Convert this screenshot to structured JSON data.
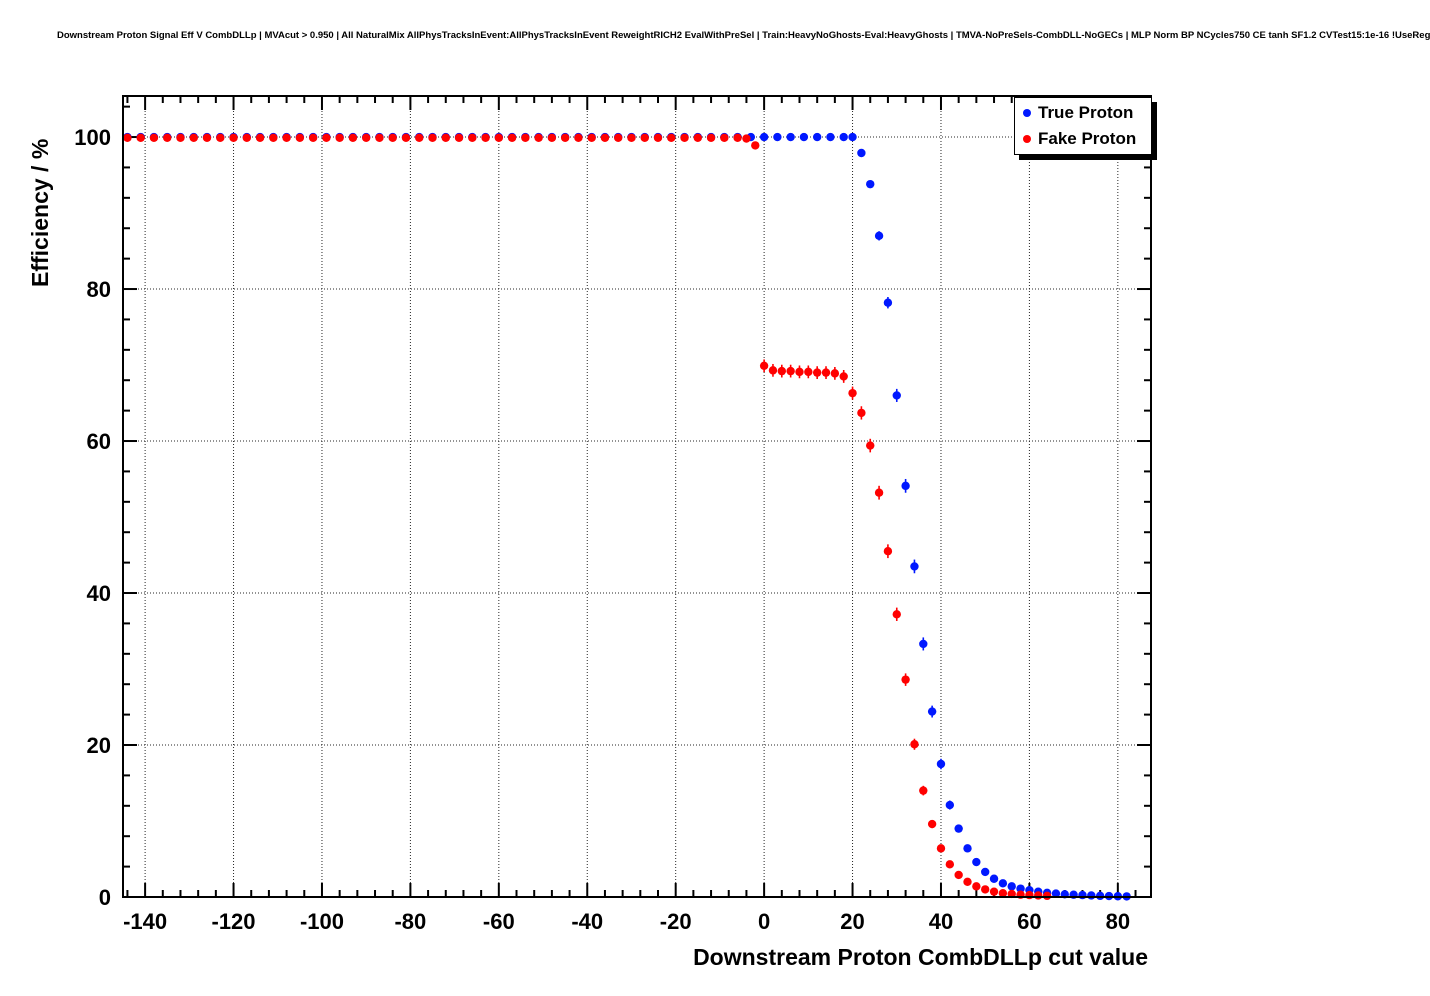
{
  "title": "Downstream Proton Signal Eff V CombDLLp | MVAcut > 0.950 | All NaturalMix AllPhysTracksInEvent:AllPhysTracksInEvent ReweightRICH2 EvalWithPreSel | Train:HeavyNoGhosts-Eval:HeavyGhosts | TMVA-NoPreSels-CombDLL-NoGECs | MLP Norm BP NCycles750 CE tanh SF1.2 CVTest15:1e-16 !UseReg",
  "chart_data": {
    "type": "scatter",
    "title": "Downstream Proton Signal Eff V CombDLLp",
    "xlabel": "Downstream Proton CombDLLp cut value",
    "ylabel": "Efficiency / %",
    "xlim": [
      -145,
      87.5
    ],
    "ylim": [
      0,
      105.4
    ],
    "xticks": [
      -140,
      -120,
      -100,
      -80,
      -60,
      -40,
      -20,
      0,
      20,
      40,
      60,
      80
    ],
    "yticks": [
      0,
      20,
      40,
      60,
      80,
      100
    ],
    "minor_x_step": 4,
    "minor_y_step": 4,
    "grid": true,
    "grid_style": "dotted",
    "legend": {
      "position": "top-right",
      "entries": [
        {
          "label": "True Proton",
          "color": "#0018ff"
        },
        {
          "label": "Fake Proton",
          "color": "#ff0000"
        }
      ]
    },
    "series": [
      {
        "name": "True Proton",
        "color": "#0018ff",
        "points": [
          [
            -144,
            100
          ],
          [
            -141,
            100
          ],
          [
            -138,
            100
          ],
          [
            -135,
            100
          ],
          [
            -132,
            100
          ],
          [
            -129,
            100
          ],
          [
            -126,
            100
          ],
          [
            -123,
            100
          ],
          [
            -120,
            100
          ],
          [
            -117,
            100
          ],
          [
            -114,
            100
          ],
          [
            -111,
            100
          ],
          [
            -108,
            100
          ],
          [
            -105,
            100
          ],
          [
            -102,
            100
          ],
          [
            -99,
            100
          ],
          [
            -96,
            100
          ],
          [
            -93,
            100
          ],
          [
            -90,
            100
          ],
          [
            -87,
            100
          ],
          [
            -84,
            100
          ],
          [
            -81,
            100
          ],
          [
            -78,
            100
          ],
          [
            -75,
            100
          ],
          [
            -72,
            100
          ],
          [
            -69,
            100
          ],
          [
            -66,
            100
          ],
          [
            -63,
            100
          ],
          [
            -60,
            100
          ],
          [
            -57,
            100
          ],
          [
            -54,
            100
          ],
          [
            -51,
            100
          ],
          [
            -48,
            100
          ],
          [
            -45,
            100
          ],
          [
            -42,
            100
          ],
          [
            -39,
            100
          ],
          [
            -36,
            100
          ],
          [
            -33,
            100
          ],
          [
            -30,
            100
          ],
          [
            -27,
            100
          ],
          [
            -24,
            100
          ],
          [
            -21,
            100
          ],
          [
            -18,
            100
          ],
          [
            -15,
            100
          ],
          [
            -12,
            100
          ],
          [
            -9,
            100
          ],
          [
            -6,
            100
          ],
          [
            -3,
            100
          ],
          [
            0,
            100
          ],
          [
            3,
            100
          ],
          [
            6,
            100
          ],
          [
            9,
            100
          ],
          [
            12,
            100
          ],
          [
            15,
            100
          ],
          [
            18,
            100
          ],
          [
            20,
            100
          ],
          [
            22,
            97.9
          ],
          [
            24,
            93.8
          ],
          [
            26,
            87.0
          ],
          [
            28,
            78.2
          ],
          [
            30,
            66.0
          ],
          [
            32,
            54.1
          ],
          [
            34,
            43.5
          ],
          [
            36,
            33.3
          ],
          [
            38,
            24.4
          ],
          [
            40,
            17.5
          ],
          [
            42,
            12.1
          ],
          [
            44,
            9.0
          ],
          [
            46,
            6.4
          ],
          [
            48,
            4.6
          ],
          [
            50,
            3.3
          ],
          [
            52,
            2.4
          ],
          [
            54,
            1.8
          ],
          [
            56,
            1.4
          ],
          [
            58,
            1.1
          ],
          [
            60,
            0.9
          ],
          [
            62,
            0.7
          ],
          [
            64,
            0.55
          ],
          [
            66,
            0.45
          ],
          [
            68,
            0.35
          ],
          [
            70,
            0.3
          ],
          [
            72,
            0.25
          ],
          [
            74,
            0.2
          ],
          [
            76,
            0.15
          ],
          [
            78,
            0.12
          ],
          [
            80,
            0.1
          ],
          [
            82,
            0.08
          ]
        ]
      },
      {
        "name": "Fake Proton",
        "color": "#ff0000",
        "points": [
          [
            -144,
            99.9
          ],
          [
            -141,
            99.9
          ],
          [
            -138,
            99.9
          ],
          [
            -135,
            99.9
          ],
          [
            -132,
            99.9
          ],
          [
            -129,
            99.9
          ],
          [
            -126,
            99.9
          ],
          [
            -123,
            99.9
          ],
          [
            -120,
            99.9
          ],
          [
            -117,
            99.9
          ],
          [
            -114,
            99.9
          ],
          [
            -111,
            99.9
          ],
          [
            -108,
            99.9
          ],
          [
            -105,
            99.9
          ],
          [
            -102,
            99.9
          ],
          [
            -99,
            99.9
          ],
          [
            -96,
            99.9
          ],
          [
            -93,
            99.9
          ],
          [
            -90,
            99.9
          ],
          [
            -87,
            99.9
          ],
          [
            -84,
            99.9
          ],
          [
            -81,
            99.9
          ],
          [
            -78,
            99.9
          ],
          [
            -75,
            99.9
          ],
          [
            -72,
            99.9
          ],
          [
            -69,
            99.9
          ],
          [
            -66,
            99.9
          ],
          [
            -63,
            99.9
          ],
          [
            -60,
            99.9
          ],
          [
            -57,
            99.9
          ],
          [
            -54,
            99.9
          ],
          [
            -51,
            99.9
          ],
          [
            -48,
            99.9
          ],
          [
            -45,
            99.9
          ],
          [
            -42,
            99.9
          ],
          [
            -39,
            99.9
          ],
          [
            -36,
            99.9
          ],
          [
            -33,
            99.9
          ],
          [
            -30,
            99.9
          ],
          [
            -27,
            99.9
          ],
          [
            -24,
            99.9
          ],
          [
            -21,
            99.9
          ],
          [
            -18,
            99.9
          ],
          [
            -15,
            99.9
          ],
          [
            -12,
            99.9
          ],
          [
            -9,
            99.9
          ],
          [
            -6,
            99.9
          ],
          [
            -4,
            99.8
          ],
          [
            -2,
            98.9
          ],
          [
            0,
            69.9
          ],
          [
            2,
            69.3
          ],
          [
            4,
            69.2
          ],
          [
            6,
            69.2
          ],
          [
            8,
            69.1
          ],
          [
            10,
            69.1
          ],
          [
            12,
            69.0
          ],
          [
            14,
            69.0
          ],
          [
            16,
            68.9
          ],
          [
            18,
            68.5
          ],
          [
            20,
            66.3
          ],
          [
            22,
            63.7
          ],
          [
            24,
            59.4
          ],
          [
            26,
            53.2
          ],
          [
            28,
            45.5
          ],
          [
            30,
            37.2
          ],
          [
            32,
            28.6
          ],
          [
            34,
            20.1
          ],
          [
            36,
            14.0
          ],
          [
            38,
            9.6
          ],
          [
            40,
            6.4
          ],
          [
            42,
            4.3
          ],
          [
            44,
            2.9
          ],
          [
            46,
            2.0
          ],
          [
            48,
            1.4
          ],
          [
            50,
            1.0
          ],
          [
            52,
            0.7
          ],
          [
            54,
            0.5
          ],
          [
            56,
            0.4
          ],
          [
            58,
            0.3
          ],
          [
            60,
            0.25
          ],
          [
            62,
            0.2
          ],
          [
            64,
            0.15
          ]
        ]
      }
    ]
  }
}
